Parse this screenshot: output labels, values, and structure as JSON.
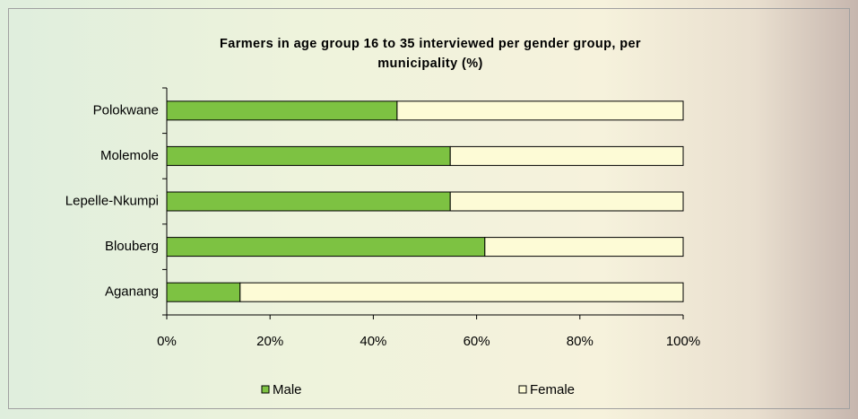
{
  "chart_data": {
    "type": "stacked-bar-horizontal",
    "title": "Farmers in age group 16 to 35 interviewed per gender group, per municipality (%)",
    "categories": [
      "Polokwane",
      "Molemole",
      "Lepelle-Nkumpi",
      "Blouberg",
      "Aganang"
    ],
    "series": [
      {
        "name": "Male",
        "color": "#7dc242",
        "values": [
          44.6,
          54.9,
          54.9,
          61.6,
          14.2
        ]
      },
      {
        "name": "Female",
        "color": "#fdfbd6",
        "values": [
          55.4,
          45.1,
          45.1,
          38.4,
          85.8
        ]
      }
    ],
    "xlim": [
      0,
      100
    ],
    "xticks": [
      {
        "value": 0,
        "label": "0%"
      },
      {
        "value": 20,
        "label": "20%"
      },
      {
        "value": 40,
        "label": "40%"
      },
      {
        "value": 60,
        "label": "60%"
      },
      {
        "value": 80,
        "label": "80%"
      },
      {
        "value": 100,
        "label": "100%"
      }
    ],
    "legend": "bottom"
  }
}
